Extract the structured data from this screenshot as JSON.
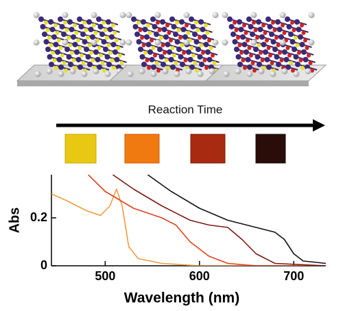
{
  "reaction_label": "Reaction Time",
  "chart_data": {
    "type": "line",
    "xlabel": "Wavelength (nm)",
    "ylabel": "Abs",
    "xlim": [
      443,
      734
    ],
    "ylim": [
      0,
      0.38
    ],
    "xticks": [
      500,
      600,
      700
    ],
    "yticks": [
      0,
      0.2
    ],
    "series": [
      {
        "name": null,
        "color": "#f39a3c",
        "x": [
          443,
          460,
          480,
          495,
          505,
          512,
          518,
          525,
          535,
          560,
          600,
          700,
          734
        ],
        "values": [
          0.3,
          0.27,
          0.23,
          0.21,
          0.25,
          0.32,
          0.25,
          0.08,
          0.03,
          0.01,
          0.0,
          0.0,
          0.0
        ]
      },
      {
        "name": null,
        "color": "#e0401e",
        "x": [
          482,
          500,
          530,
          560,
          575,
          590,
          610,
          630,
          660,
          734
        ],
        "values": [
          0.38,
          0.31,
          0.24,
          0.2,
          0.17,
          0.1,
          0.04,
          0.01,
          0.0,
          0.0
        ]
      },
      {
        "name": null,
        "color": "#7a1a10",
        "x": [
          508,
          530,
          560,
          590,
          610,
          630,
          645,
          660,
          680,
          734
        ],
        "values": [
          0.38,
          0.32,
          0.25,
          0.19,
          0.17,
          0.16,
          0.11,
          0.05,
          0.01,
          0.0
        ]
      },
      {
        "name": null,
        "color": "#111111",
        "x": [
          545,
          570,
          600,
          630,
          660,
          680,
          690,
          700,
          710,
          734
        ],
        "values": [
          0.38,
          0.31,
          0.24,
          0.19,
          0.16,
          0.14,
          0.11,
          0.05,
          0.02,
          0.01
        ]
      }
    ]
  }
}
